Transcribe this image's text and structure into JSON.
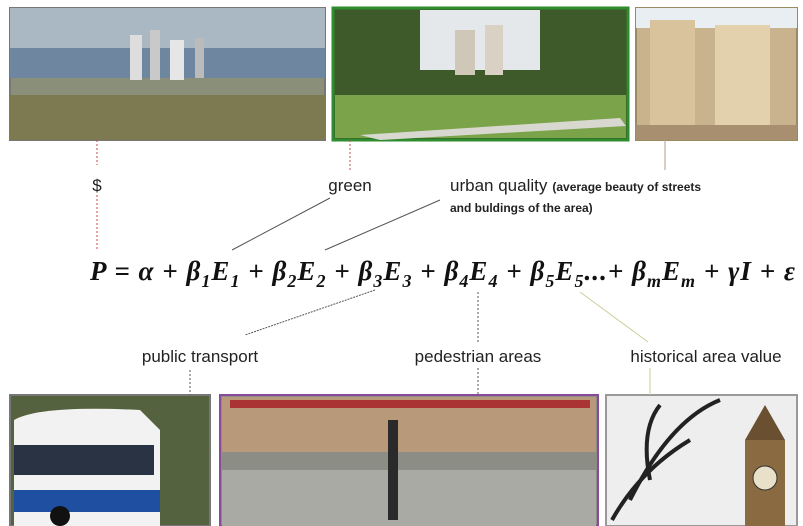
{
  "labels": {
    "money": "$",
    "green": "green",
    "urban_quality": "urban quality",
    "urban_quality_note_1": "(average beauty of streets",
    "urban_quality_note_2": "and buldings of the area)",
    "public_transport": "public transport",
    "pedestrian_areas": "pedestrian areas",
    "historical_area_value": "historical area value"
  },
  "equation": {
    "tokens": [
      {
        "text": "P"
      },
      {
        "text": " = "
      },
      {
        "text": "α"
      },
      {
        "text": " + "
      },
      {
        "text": "β",
        "sub": "1"
      },
      {
        "text": "E",
        "sub": "1"
      },
      {
        "text": " + "
      },
      {
        "text": "β",
        "sub": "2"
      },
      {
        "text": "E",
        "sub": "2"
      },
      {
        "text": " + "
      },
      {
        "text": "β",
        "sub": "3"
      },
      {
        "text": "E",
        "sub": "3"
      },
      {
        "text": " + "
      },
      {
        "text": "β",
        "sub": "4"
      },
      {
        "text": "E",
        "sub": "4"
      },
      {
        "text": " + "
      },
      {
        "text": "β",
        "sub": "5"
      },
      {
        "text": "E",
        "sub": "5"
      },
      {
        "text": "...+ "
      },
      {
        "text": "β",
        "sub": "m"
      },
      {
        "text": "E",
        "sub": "m"
      },
      {
        "text": " + "
      },
      {
        "text": "γI"
      },
      {
        "text": " + "
      },
      {
        "text": "ε"
      }
    ]
  }
}
